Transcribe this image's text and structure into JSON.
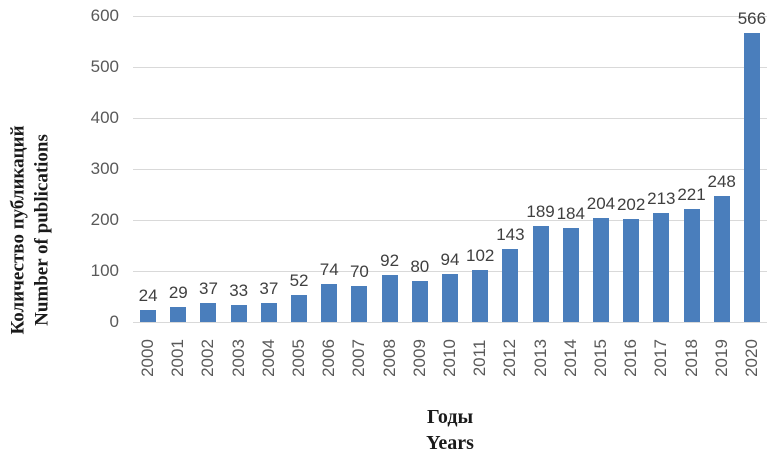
{
  "chart_data": {
    "type": "bar",
    "categories": [
      "2000",
      "2001",
      "2002",
      "2003",
      "2004",
      "2005",
      "2006",
      "2007",
      "2008",
      "2009",
      "2010",
      "2011",
      "2012",
      "2013",
      "2014",
      "2015",
      "2016",
      "2017",
      "2018",
      "2019",
      "2020"
    ],
    "values": [
      24,
      29,
      37,
      33,
      37,
      52,
      74,
      70,
      92,
      80,
      94,
      102,
      143,
      189,
      184,
      204,
      202,
      213,
      221,
      248,
      566
    ],
    "title": "",
    "xlabel_lines": [
      "Годы",
      "Years"
    ],
    "ylabel_lines": [
      "Количество публикаций",
      "Number of publications"
    ],
    "yticks": [
      0,
      100,
      200,
      300,
      400,
      500,
      600
    ],
    "ylim": [
      0,
      600
    ],
    "grid": true,
    "legend_position": "none",
    "data_labels": true,
    "colors": {
      "bar": "#4a7ebc",
      "gridline": "#d9d9d9",
      "axis_line": "#d9d9d9",
      "tick_label": "#595959",
      "value_label": "#3f3f3f",
      "axis_title": "#1a1a1a"
    }
  }
}
